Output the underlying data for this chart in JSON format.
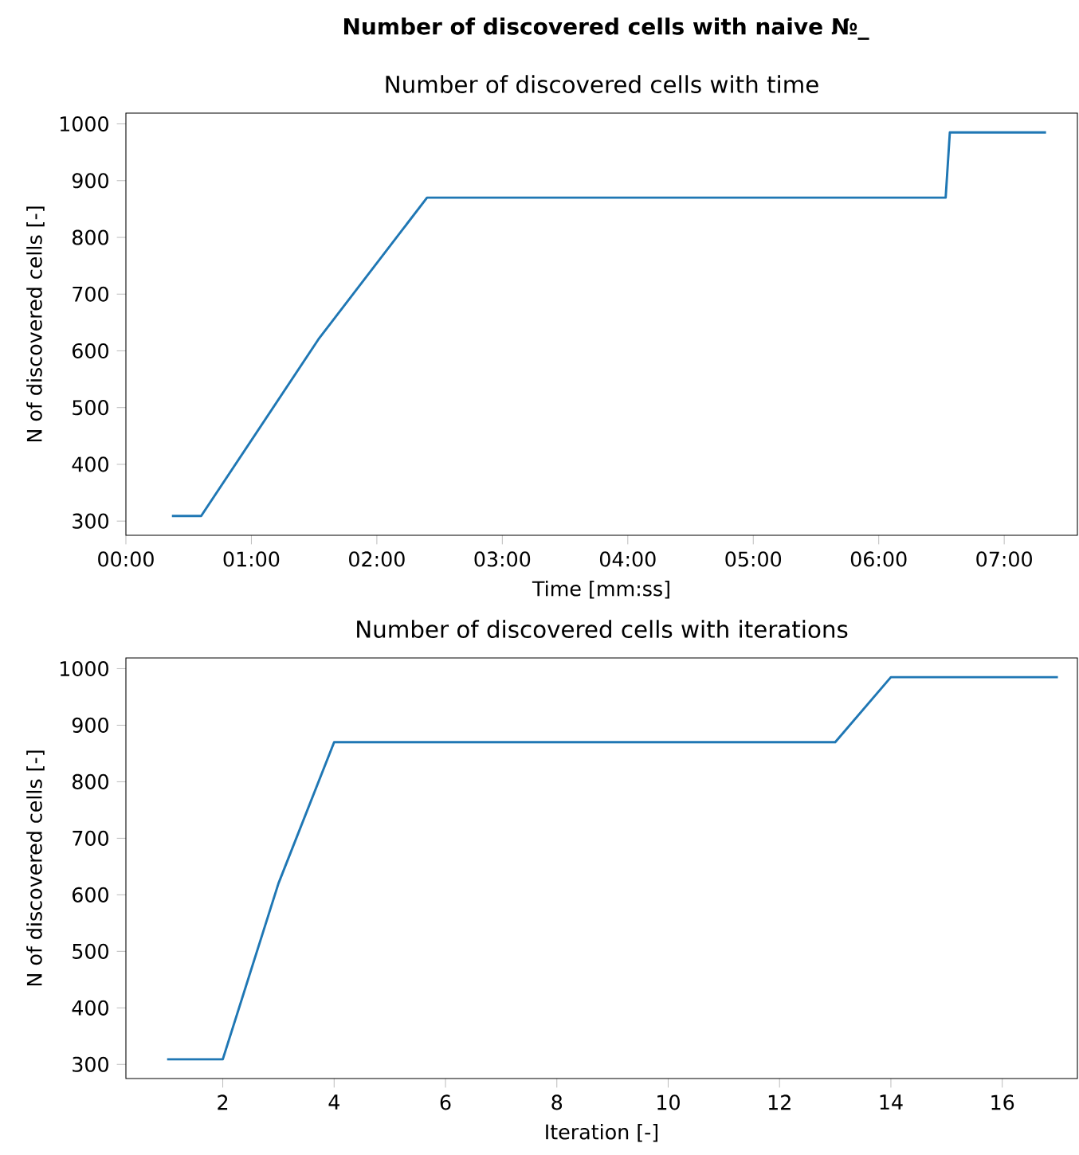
{
  "chart_data": [
    {
      "type": "line",
      "title": "Number of discovered cells with naive №_",
      "subtitle": "Number of discovered cells with time",
      "xlabel": "Time [mm:ss]",
      "ylabel": "N of discovered cells [-]",
      "xlim": [
        0,
        455
      ],
      "ylim": [
        275,
        1019
      ],
      "xticks": [
        {
          "value": 0,
          "label": "00:00"
        },
        {
          "value": 60,
          "label": "01:00"
        },
        {
          "value": 120,
          "label": "02:00"
        },
        {
          "value": 180,
          "label": "03:00"
        },
        {
          "value": 240,
          "label": "04:00"
        },
        {
          "value": 300,
          "label": "05:00"
        },
        {
          "value": 360,
          "label": "06:00"
        },
        {
          "value": 420,
          "label": "07:00"
        }
      ],
      "yticks": [
        300,
        400,
        500,
        600,
        700,
        800,
        900,
        1000
      ],
      "series": [
        {
          "color": "#1f77b4",
          "x": [
            22,
            36,
            92,
            144,
            392,
            394,
            440
          ],
          "values": [
            309,
            309,
            620,
            870,
            870,
            985,
            985
          ]
        }
      ]
    },
    {
      "type": "line",
      "title": "Number of discovered cells with iterations",
      "xlabel": "Iteration [-]",
      "ylabel": "N of discovered cells [-]",
      "xlim": [
        0.26,
        17.35
      ],
      "ylim": [
        275,
        1019
      ],
      "xticks": [
        2,
        4,
        6,
        8,
        10,
        12,
        14,
        16
      ],
      "yticks": [
        300,
        400,
        500,
        600,
        700,
        800,
        900,
        1000
      ],
      "series": [
        {
          "color": "#1f77b4",
          "x": [
            1,
            2,
            3,
            4,
            13,
            14,
            17
          ],
          "values": [
            309,
            309,
            620,
            870,
            870,
            985,
            985
          ]
        }
      ]
    }
  ]
}
